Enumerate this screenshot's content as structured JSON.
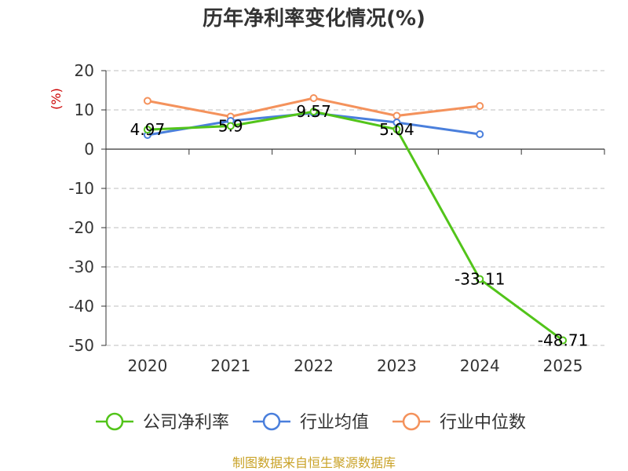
{
  "chart_data": {
    "type": "line",
    "title": "历年净利率变化情况(%)",
    "unit_label": "(%)",
    "categories": [
      "2020",
      "2021",
      "2022",
      "2023",
      "2024",
      "2025"
    ],
    "ylim": [
      -50,
      20
    ],
    "yticks": [
      20,
      10,
      0,
      -10,
      -20,
      -30,
      -40,
      -50
    ],
    "grid": true,
    "legend_position": "bottom",
    "series": [
      {
        "name": "公司净利率",
        "color": "#52c41a",
        "values": [
          4.97,
          5.9,
          9.57,
          5.04,
          -33.11,
          -48.71
        ],
        "labels": [
          "4.97",
          "5.9",
          "9.57",
          "5.04",
          "-33.11",
          "-48.71"
        ]
      },
      {
        "name": "行业均值",
        "color": "#4a7fdc",
        "values": [
          3.6,
          7.2,
          9.2,
          6.8,
          3.8,
          null
        ],
        "labels": []
      },
      {
        "name": "行业中位数",
        "color": "#f4925c",
        "values": [
          12.3,
          8.3,
          13.0,
          8.5,
          11.0,
          null
        ],
        "labels": []
      }
    ],
    "source": "制图数据来自恒生聚源数据库"
  }
}
